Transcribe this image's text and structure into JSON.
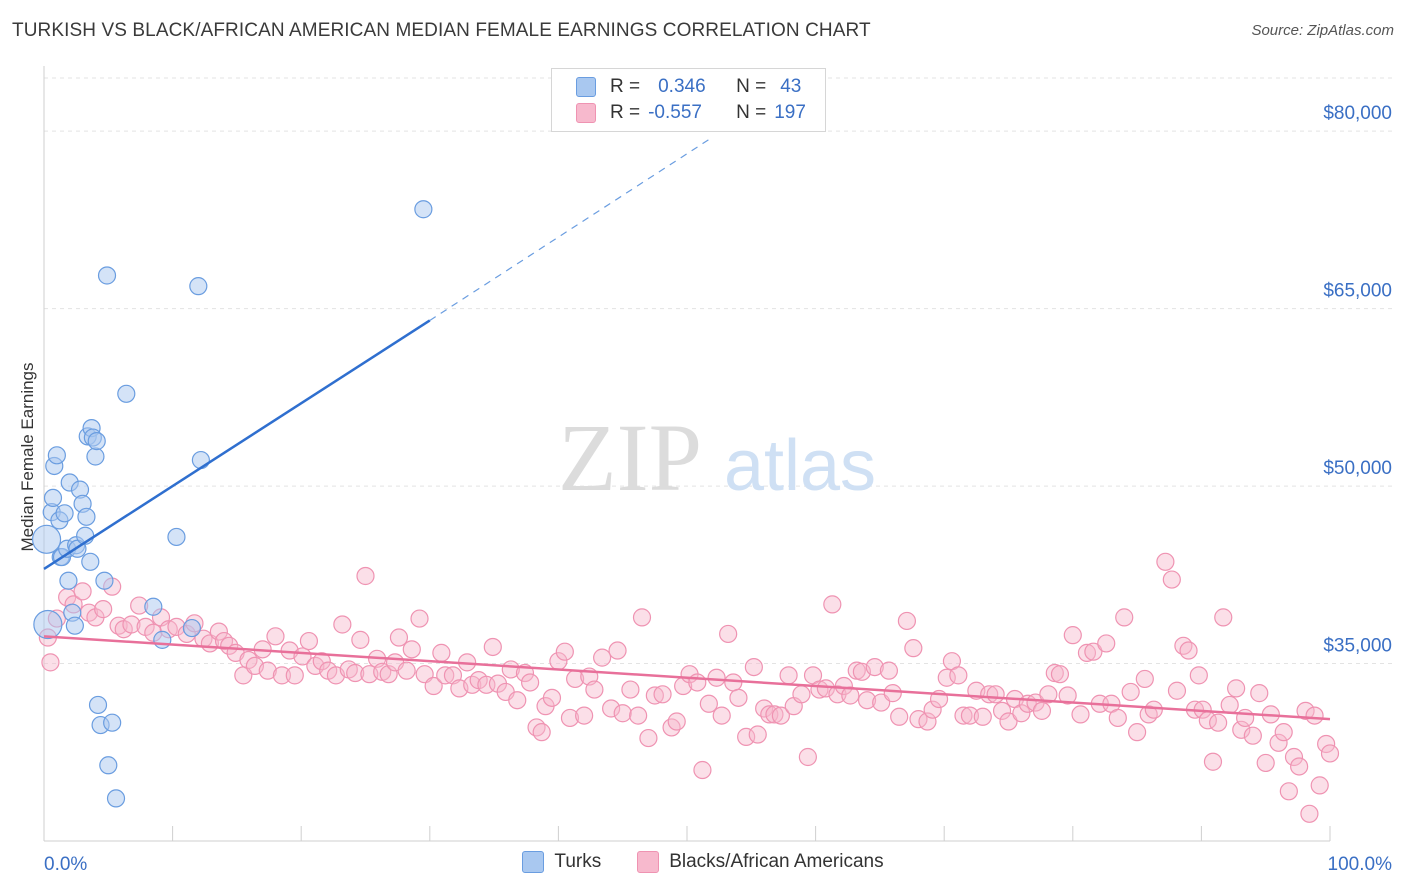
{
  "title": "TURKISH VS BLACK/AFRICAN AMERICAN MEDIAN FEMALE EARNINGS CORRELATION CHART",
  "source": "Source: ZipAtlas.com",
  "watermark": {
    "zip": "ZIP",
    "atlas": "atlas"
  },
  "colors": {
    "turks_fill": "#a9c8f0",
    "turks_stroke": "#6a9de0",
    "turks_line": "#2f6fcf",
    "blacks_fill": "#f7b9cd",
    "blacks_stroke": "#ef93b2",
    "blacks_line": "#e8709a",
    "grid": "#e3e3e3",
    "axis_text": "#3a6fc4"
  },
  "stats": {
    "turks": {
      "r_label": "R =",
      "r_value": "0.346",
      "n_label": "N =",
      "n_value": "43"
    },
    "blacks": {
      "r_label": "R =",
      "r_value": "-0.557",
      "n_label": "N =",
      "n_value": "197"
    }
  },
  "legend": {
    "turks": "Turks",
    "blacks": "Blacks/African Americans"
  },
  "chart_data": {
    "type": "scatter",
    "xlabel": "",
    "ylabel": "Median Female Earnings",
    "xlim": [
      0,
      100
    ],
    "ylim": [
      20000,
      85000
    ],
    "x_tick_labels": [
      "0.0%",
      "100.0%"
    ],
    "y_ticks": [
      35000,
      50000,
      65000,
      80000
    ],
    "y_tick_labels": [
      "$35,000",
      "$50,000",
      "$65,000",
      "$80,000"
    ],
    "grid": "horizontal dashed",
    "series": [
      {
        "name": "Turks",
        "trend": {
          "x": [
            0,
            30
          ],
          "y": [
            43000,
            64000
          ],
          "dashed_to": [
            52,
            79500
          ]
        },
        "points": [
          [
            0.2,
            45500
          ],
          [
            0.3,
            38300
          ],
          [
            0.6,
            47800
          ],
          [
            0.7,
            49000
          ],
          [
            0.8,
            51700
          ],
          [
            1.0,
            52600
          ],
          [
            1.2,
            47100
          ],
          [
            1.3,
            44000
          ],
          [
            1.4,
            44000
          ],
          [
            1.6,
            47700
          ],
          [
            1.8,
            44700
          ],
          [
            1.9,
            42000
          ],
          [
            2.0,
            50300
          ],
          [
            2.2,
            39300
          ],
          [
            2.4,
            38200
          ],
          [
            2.5,
            45000
          ],
          [
            2.6,
            44700
          ],
          [
            2.8,
            49700
          ],
          [
            3.0,
            48500
          ],
          [
            3.2,
            45800
          ],
          [
            3.3,
            47400
          ],
          [
            3.4,
            54200
          ],
          [
            3.6,
            43600
          ],
          [
            3.7,
            54900
          ],
          [
            3.8,
            54100
          ],
          [
            4.0,
            52500
          ],
          [
            4.1,
            53800
          ],
          [
            4.2,
            31500
          ],
          [
            4.4,
            29800
          ],
          [
            4.7,
            42000
          ],
          [
            4.9,
            67800
          ],
          [
            5.0,
            26400
          ],
          [
            5.3,
            30000
          ],
          [
            5.6,
            23600
          ],
          [
            6.4,
            57800
          ],
          [
            8.5,
            39800
          ],
          [
            9.2,
            37000
          ],
          [
            10.3,
            45700
          ],
          [
            11.5,
            38000
          ],
          [
            12.0,
            66900
          ],
          [
            12.2,
            52200
          ],
          [
            29.5,
            73400
          ]
        ]
      },
      {
        "name": "Blacks/African Americans",
        "trend": {
          "x": [
            0,
            100
          ],
          "y": [
            37300,
            30300
          ]
        },
        "points": [
          [
            0.3,
            37200
          ],
          [
            0.5,
            35100
          ],
          [
            1.0,
            38800
          ],
          [
            1.8,
            40600
          ],
          [
            2.3,
            40000
          ],
          [
            3.0,
            41100
          ],
          [
            3.5,
            39300
          ],
          [
            4.0,
            38900
          ],
          [
            4.6,
            39600
          ],
          [
            5.3,
            41500
          ],
          [
            5.8,
            38200
          ],
          [
            6.2,
            37900
          ],
          [
            6.8,
            38300
          ],
          [
            7.4,
            39900
          ],
          [
            7.9,
            38100
          ],
          [
            8.5,
            37600
          ],
          [
            9.1,
            38900
          ],
          [
            9.7,
            37900
          ],
          [
            10.3,
            38100
          ],
          [
            11.1,
            37500
          ],
          [
            11.7,
            38400
          ],
          [
            12.4,
            37100
          ],
          [
            12.9,
            36700
          ],
          [
            13.6,
            37700
          ],
          [
            14.0,
            36900
          ],
          [
            14.4,
            36500
          ],
          [
            14.9,
            35900
          ],
          [
            15.5,
            34000
          ],
          [
            15.9,
            35300
          ],
          [
            16.4,
            34800
          ],
          [
            17.0,
            36200
          ],
          [
            17.4,
            34400
          ],
          [
            18.0,
            37300
          ],
          [
            18.5,
            34000
          ],
          [
            19.1,
            36100
          ],
          [
            19.5,
            34000
          ],
          [
            20.1,
            35600
          ],
          [
            20.6,
            36900
          ],
          [
            21.1,
            34800
          ],
          [
            21.6,
            35200
          ],
          [
            22.1,
            34400
          ],
          [
            22.7,
            34000
          ],
          [
            23.2,
            38300
          ],
          [
            23.7,
            34500
          ],
          [
            24.2,
            34200
          ],
          [
            24.6,
            37000
          ],
          [
            25.0,
            42400
          ],
          [
            25.3,
            34100
          ],
          [
            25.9,
            35400
          ],
          [
            26.3,
            34300
          ],
          [
            26.8,
            34100
          ],
          [
            27.3,
            35100
          ],
          [
            27.6,
            37200
          ],
          [
            28.2,
            34400
          ],
          [
            28.6,
            36200
          ],
          [
            29.2,
            38800
          ],
          [
            29.6,
            34100
          ],
          [
            30.3,
            33100
          ],
          [
            30.9,
            35900
          ],
          [
            31.2,
            34000
          ],
          [
            31.8,
            34000
          ],
          [
            32.3,
            32900
          ],
          [
            32.9,
            35100
          ],
          [
            33.3,
            33200
          ],
          [
            33.8,
            33600
          ],
          [
            34.4,
            33200
          ],
          [
            34.9,
            36400
          ],
          [
            35.3,
            33300
          ],
          [
            35.9,
            32600
          ],
          [
            36.3,
            34500
          ],
          [
            36.8,
            31900
          ],
          [
            37.4,
            34200
          ],
          [
            37.8,
            33400
          ],
          [
            38.3,
            29600
          ],
          [
            38.7,
            29200
          ],
          [
            39.0,
            31400
          ],
          [
            39.5,
            32100
          ],
          [
            40.0,
            35200
          ],
          [
            40.5,
            36000
          ],
          [
            40.9,
            30400
          ],
          [
            41.3,
            33700
          ],
          [
            42.0,
            30600
          ],
          [
            42.4,
            33900
          ],
          [
            42.8,
            32800
          ],
          [
            43.4,
            35500
          ],
          [
            44.1,
            31200
          ],
          [
            44.6,
            36100
          ],
          [
            45.0,
            30800
          ],
          [
            45.6,
            32800
          ],
          [
            46.2,
            30600
          ],
          [
            46.5,
            38900
          ],
          [
            47.0,
            28700
          ],
          [
            47.5,
            32300
          ],
          [
            48.1,
            32400
          ],
          [
            48.8,
            29600
          ],
          [
            49.2,
            30100
          ],
          [
            49.7,
            33100
          ],
          [
            50.2,
            34100
          ],
          [
            50.8,
            33400
          ],
          [
            51.2,
            26000
          ],
          [
            51.7,
            31600
          ],
          [
            52.3,
            33800
          ],
          [
            52.7,
            30600
          ],
          [
            53.2,
            37500
          ],
          [
            53.6,
            33400
          ],
          [
            54.0,
            32100
          ],
          [
            54.6,
            28800
          ],
          [
            55.2,
            34700
          ],
          [
            55.5,
            29000
          ],
          [
            56.0,
            31200
          ],
          [
            56.4,
            30700
          ],
          [
            56.8,
            30700
          ],
          [
            57.3,
            30600
          ],
          [
            57.9,
            34000
          ],
          [
            58.3,
            31400
          ],
          [
            58.9,
            32400
          ],
          [
            59.4,
            27100
          ],
          [
            59.8,
            34000
          ],
          [
            60.3,
            32800
          ],
          [
            60.8,
            32900
          ],
          [
            61.3,
            40000
          ],
          [
            61.7,
            32400
          ],
          [
            62.2,
            33100
          ],
          [
            62.7,
            32300
          ],
          [
            63.2,
            34400
          ],
          [
            63.6,
            34300
          ],
          [
            64.0,
            31900
          ],
          [
            64.6,
            34700
          ],
          [
            65.1,
            31700
          ],
          [
            65.7,
            34400
          ],
          [
            66.0,
            32500
          ],
          [
            66.5,
            30500
          ],
          [
            67.1,
            38600
          ],
          [
            67.6,
            36300
          ],
          [
            68.0,
            30300
          ],
          [
            68.7,
            30100
          ],
          [
            69.1,
            31100
          ],
          [
            69.6,
            32000
          ],
          [
            70.2,
            33800
          ],
          [
            70.6,
            35200
          ],
          [
            71.1,
            34000
          ],
          [
            71.5,
            30600
          ],
          [
            72.0,
            30600
          ],
          [
            72.5,
            32700
          ],
          [
            73.0,
            30500
          ],
          [
            73.5,
            32400
          ],
          [
            74.0,
            32400
          ],
          [
            74.5,
            31000
          ],
          [
            75.0,
            30100
          ],
          [
            75.5,
            32000
          ],
          [
            76.0,
            30800
          ],
          [
            76.5,
            31600
          ],
          [
            77.1,
            31700
          ],
          [
            77.6,
            31000
          ],
          [
            78.1,
            32400
          ],
          [
            78.6,
            34200
          ],
          [
            79.0,
            34100
          ],
          [
            79.6,
            32300
          ],
          [
            80.0,
            37400
          ],
          [
            80.6,
            30700
          ],
          [
            81.1,
            35900
          ],
          [
            81.6,
            36000
          ],
          [
            82.1,
            31600
          ],
          [
            82.6,
            36700
          ],
          [
            83.0,
            31600
          ],
          [
            83.5,
            30400
          ],
          [
            84.0,
            38900
          ],
          [
            84.5,
            32600
          ],
          [
            85.0,
            29200
          ],
          [
            85.6,
            33700
          ],
          [
            85.9,
            30700
          ],
          [
            86.3,
            31100
          ],
          [
            87.2,
            43600
          ],
          [
            87.7,
            42100
          ],
          [
            88.1,
            32700
          ],
          [
            88.6,
            36500
          ],
          [
            89.0,
            36100
          ],
          [
            89.5,
            31100
          ],
          [
            89.8,
            34000
          ],
          [
            90.1,
            31100
          ],
          [
            90.5,
            30200
          ],
          [
            90.9,
            26700
          ],
          [
            91.3,
            30000
          ],
          [
            91.7,
            38900
          ],
          [
            92.2,
            31500
          ],
          [
            92.7,
            32900
          ],
          [
            93.1,
            29400
          ],
          [
            93.4,
            30400
          ],
          [
            94.0,
            28900
          ],
          [
            94.5,
            32500
          ],
          [
            95.0,
            26600
          ],
          [
            95.4,
            30700
          ],
          [
            96.0,
            28300
          ],
          [
            96.4,
            29200
          ],
          [
            96.8,
            24200
          ],
          [
            97.2,
            27100
          ],
          [
            97.6,
            26300
          ],
          [
            98.1,
            31000
          ],
          [
            98.4,
            22300
          ],
          [
            98.8,
            30600
          ],
          [
            99.2,
            24700
          ],
          [
            99.7,
            28200
          ],
          [
            100.0,
            27400
          ]
        ]
      }
    ]
  }
}
